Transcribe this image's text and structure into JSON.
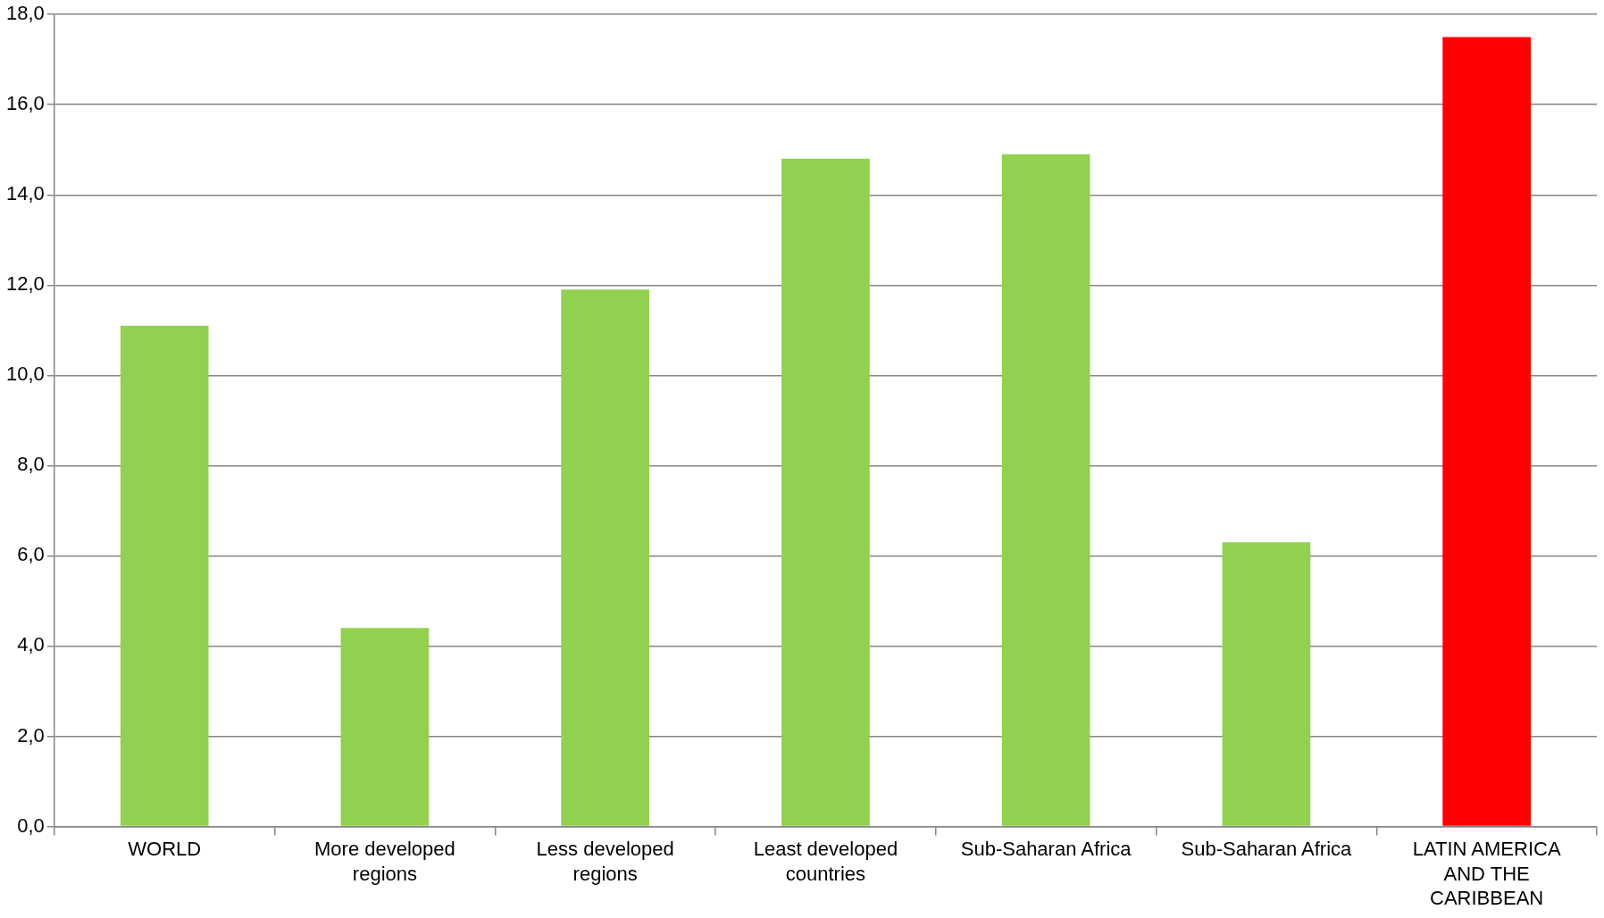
{
  "chart_data": {
    "type": "bar",
    "categories": [
      "WORLD",
      "More developed regions",
      "Less developed regions",
      "Least developed countries",
      "Sub-Saharan Africa",
      "Sub-Saharan Africa",
      "LATIN AMERICA AND THE CARIBBEAN"
    ],
    "values": [
      11.1,
      4.4,
      11.9,
      14.8,
      14.9,
      6.3,
      17.5
    ],
    "colors": [
      "#92d050",
      "#92d050",
      "#92d050",
      "#92d050",
      "#92d050",
      "#92d050",
      "#ff0000"
    ],
    "ylim": [
      0,
      18
    ],
    "yticks": [
      {
        "value": 0,
        "label": "0,0"
      },
      {
        "value": 2,
        "label": "2,0"
      },
      {
        "value": 4,
        "label": "4,0"
      },
      {
        "value": 6,
        "label": "6,0"
      },
      {
        "value": 8,
        "label": "8,0"
      },
      {
        "value": 10,
        "label": "10,0"
      },
      {
        "value": 12,
        "label": "12,0"
      },
      {
        "value": 14,
        "label": "14,0"
      },
      {
        "value": 16,
        "label": "16,0"
      },
      {
        "value": 18,
        "label": "18,0"
      }
    ],
    "grid": "y",
    "legend": false
  }
}
